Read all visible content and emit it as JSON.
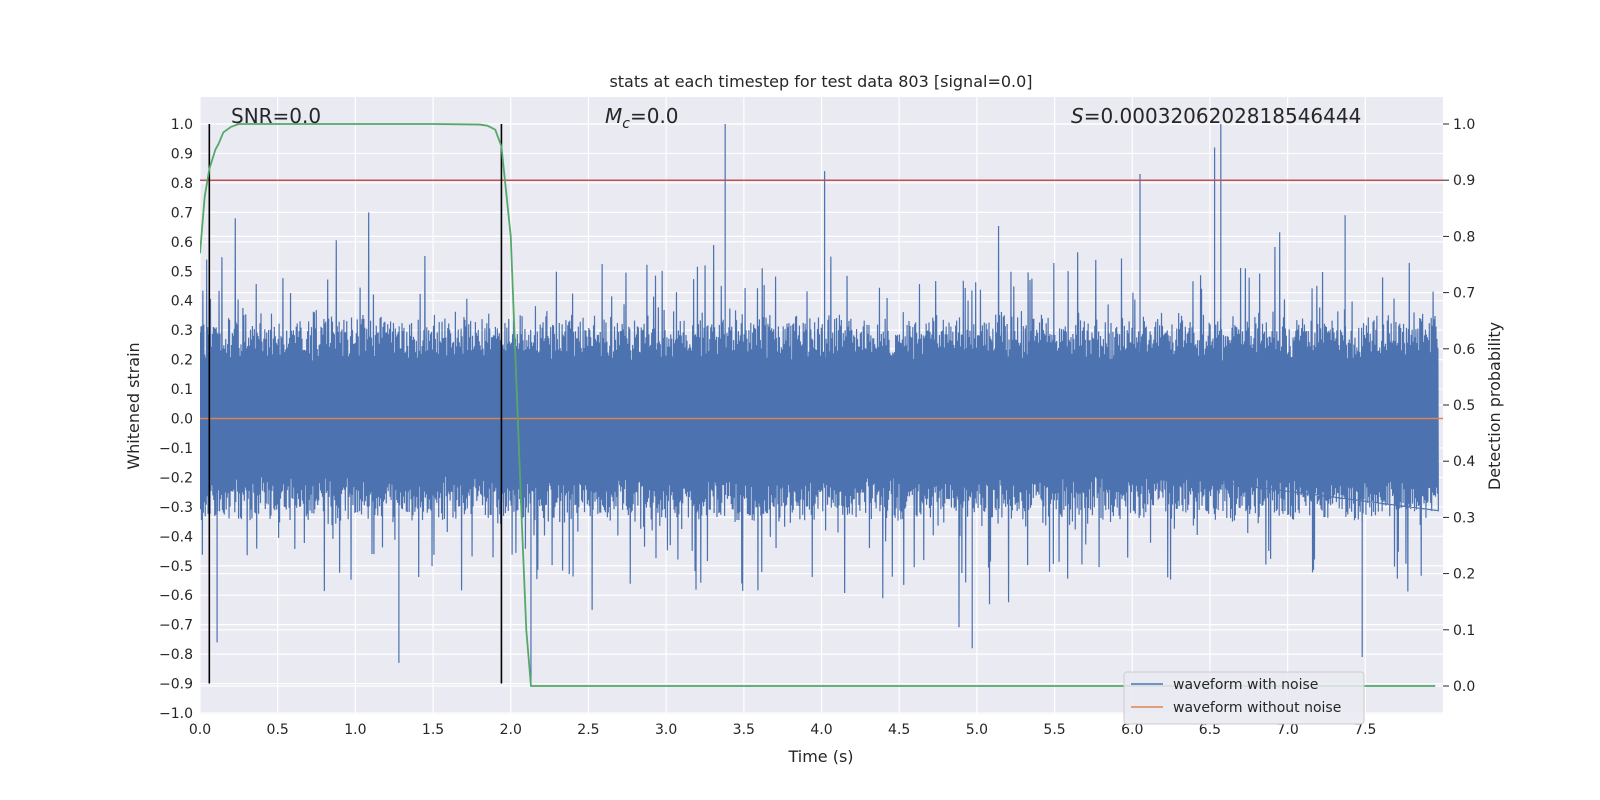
{
  "chart_data": {
    "type": "line",
    "title": "stats at each timestep for test data 803 [signal=0.0]",
    "xlabel": "Time (s)",
    "ylabel": "Whitened strain",
    "ylabel_right": "Detection probability",
    "xlim": [
      0.0,
      8.0
    ],
    "ylim": [
      -1.0,
      1.08
    ],
    "ylim_right": [
      -0.048,
      1.048
    ],
    "x_ticks": [
      "0.0",
      "0.5",
      "1.0",
      "1.5",
      "2.0",
      "2.5",
      "3.0",
      "3.5",
      "4.0",
      "4.5",
      "5.0",
      "5.5",
      "6.0",
      "6.5",
      "7.0",
      "7.5"
    ],
    "y_ticks": [
      "1.0",
      "0.9",
      "0.8",
      "0.7",
      "0.6",
      "0.5",
      "0.4",
      "0.3",
      "0.2",
      "0.1",
      "0.0",
      "−0.1",
      "−0.2",
      "−0.3",
      "−0.4",
      "−0.5",
      "−0.6",
      "−0.7",
      "−0.8",
      "−0.9",
      "−1.0"
    ],
    "y_right_ticks": [
      "1.0",
      "0.9",
      "0.8",
      "0.7",
      "0.6",
      "0.5",
      "0.4",
      "0.3",
      "0.2",
      "0.1",
      "0.0"
    ],
    "annotations": {
      "snr": "SNR=0.0",
      "mc_symbol": "M",
      "mc_sub": "c",
      "mc_value": "=0.0",
      "s_symbol": "S",
      "s_value": "=0.0003206202818546444"
    },
    "legend": {
      "position": "lower-right",
      "entries": [
        {
          "label": "waveform with noise",
          "color": "#4c72b0"
        },
        {
          "label": "waveform without noise",
          "color": "#dd8452"
        }
      ]
    },
    "series": [
      {
        "name": "waveform with noise",
        "color": "#4c72b0",
        "axis": "left",
        "envelope": "noise, approx ±0.25 core with spikes to about +1.0 and −0.9"
      },
      {
        "name": "waveform without noise",
        "color": "#dd8452",
        "axis": "left",
        "value": 0.0
      },
      {
        "name": "detection probability",
        "color": "#55a868",
        "axis": "right",
        "x": [
          0.0,
          0.03,
          0.06,
          0.1,
          0.12,
          0.15,
          0.2,
          0.25,
          0.3,
          0.4,
          0.6,
          1.0,
          1.5,
          1.8,
          1.85,
          1.9,
          1.94,
          2.0,
          2.07,
          2.1,
          2.13,
          2.2,
          3.0,
          5.0,
          7.95
        ],
        "y": [
          0.77,
          0.87,
          0.92,
          0.955,
          0.965,
          0.985,
          0.995,
          1.0,
          1.0,
          1.0,
          1.0,
          1.0,
          1.0,
          0.999,
          0.997,
          0.99,
          0.96,
          0.8,
          0.3,
          0.1,
          0.0,
          0.0,
          0.0,
          0.0,
          0.0
        ]
      }
    ],
    "threshold": {
      "value": 0.9,
      "axis": "right",
      "color": "#c44e52"
    },
    "vertical_markers": {
      "x": [
        0.06,
        1.94
      ],
      "y_range": [
        -0.9,
        1.0
      ],
      "color": "#000000"
    },
    "grid": true,
    "background": "#eaeaf2"
  }
}
